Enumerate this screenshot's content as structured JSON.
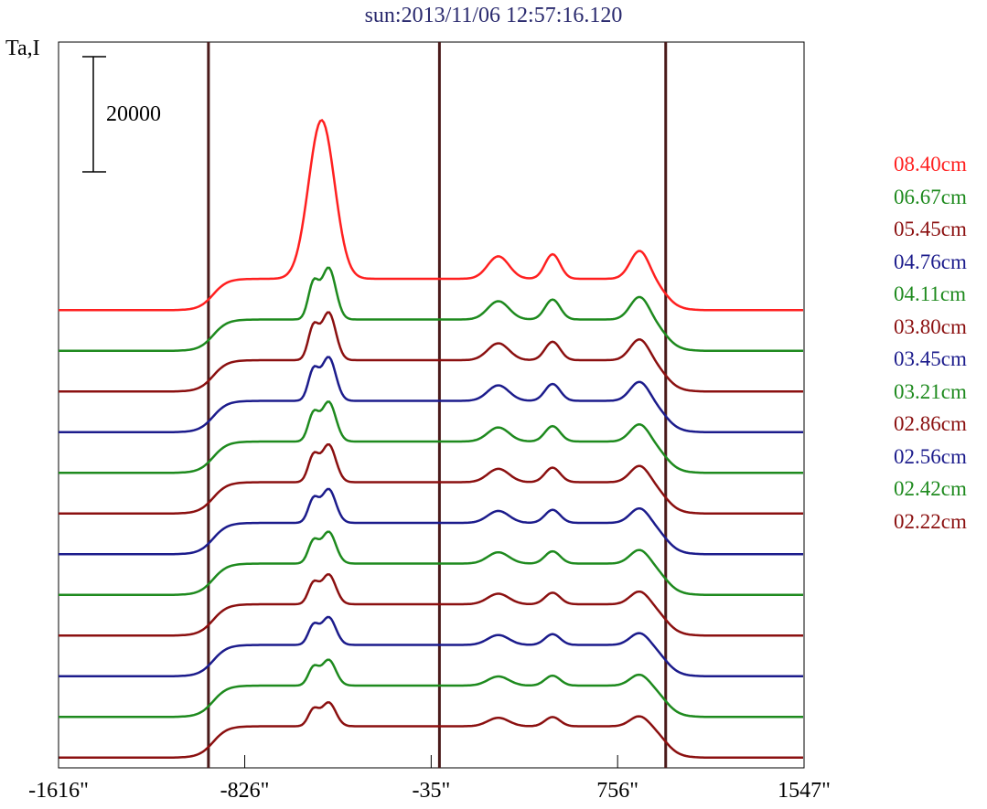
{
  "chart_data": {
    "type": "line",
    "title": "sun:2013/11/06 12:57:16.120",
    "ylabel": "Ta,I",
    "scale_bar": {
      "value": 20000,
      "label": "20000"
    },
    "x_axis": {
      "range": [
        -1616,
        1547
      ],
      "ticks": [
        -1616,
        -826,
        -35,
        756,
        1547
      ],
      "tick_labels": [
        "-1616\"",
        "-826\"",
        "-35\"",
        "756\"",
        "1547\""
      ]
    },
    "vertical_lines_x": [
      -980,
      0,
      960
    ],
    "legend_placement": "right",
    "series": [
      {
        "name": "08.40cm",
        "color": "#ff2020",
        "offset": 11,
        "amp": 1.6
      },
      {
        "name": "06.67cm",
        "color": "#1e8a1e",
        "offset": 10,
        "amp": 1.3
      },
      {
        "name": "05.45cm",
        "color": "#8b1010",
        "offset": 9,
        "amp": 1.2
      },
      {
        "name": "04.76cm",
        "color": "#1c1c8c",
        "offset": 8,
        "amp": 1.1
      },
      {
        "name": "04.11cm",
        "color": "#1e8a1e",
        "offset": 7,
        "amp": 1.0
      },
      {
        "name": "03.80cm",
        "color": "#8b1010",
        "offset": 6,
        "amp": 0.95
      },
      {
        "name": "03.45cm",
        "color": "#1c1c8c",
        "offset": 5,
        "amp": 0.85
      },
      {
        "name": "03.21cm",
        "color": "#1e8a1e",
        "offset": 4,
        "amp": 0.8
      },
      {
        "name": "02.86cm",
        "color": "#8b1010",
        "offset": 3,
        "amp": 0.75
      },
      {
        "name": "02.56cm",
        "color": "#1c1c8c",
        "offset": 2,
        "amp": 0.7
      },
      {
        "name": "02.42cm",
        "color": "#1e8a1e",
        "offset": 1,
        "amp": 0.65
      },
      {
        "name": "02.22cm",
        "color": "#8b1010",
        "offset": 0,
        "amp": 0.6
      }
    ]
  }
}
